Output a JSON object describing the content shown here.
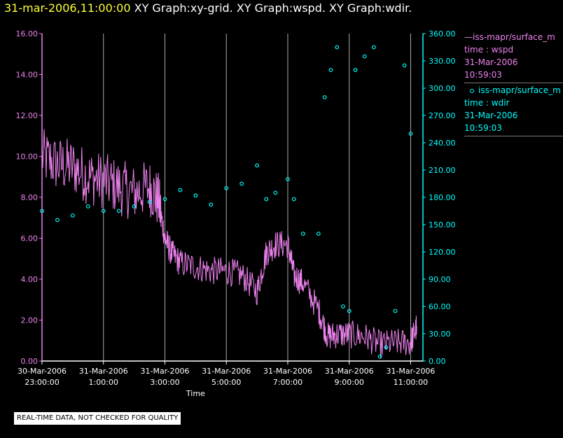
{
  "title": {
    "timestamp": "31-mar-2006,11:00:00",
    "graphs": "XY Graph:xy-grid.  XY Graph:wspd.  XY Graph:wdir."
  },
  "legend": [
    {
      "prefix": "—",
      "series": "iss-mapr/surface_m",
      "label": "time : wspd",
      "date": "31-Mar-2006",
      "time": "10:59:03"
    },
    {
      "prefix": "o",
      "series": "iss-mapr/surface_m",
      "label": "time : wdir",
      "date": "31-Mar-2006",
      "time": "10:59:03"
    }
  ],
  "disclaimer": "REAL-TIME DATA, NOT CHECKED FOR QUALITY",
  "colors": {
    "background": "#000000",
    "wspd": "#ee82ee",
    "wdir": "#00ffff",
    "grid": "#aaaaaa",
    "title_time": "#ffff33"
  },
  "chart_data": {
    "type": "line",
    "xlabel": "Time",
    "xlim_hours": [
      -1.0,
      11.4
    ],
    "x_ticks": [
      {
        "date": "30-Mar-2006",
        "time": "23:00:00"
      },
      {
        "date": "31-Mar-2006",
        "time": "1:00:00"
      },
      {
        "date": "31-Mar-2006",
        "time": "3:00:00"
      },
      {
        "date": "31-Mar-2006",
        "time": "5:00:00"
      },
      {
        "date": "31-Mar-2006",
        "time": "7:00:00"
      },
      {
        "date": "31-Mar-2006",
        "time": "9:00:00"
      },
      {
        "date": "31-Mar-2006",
        "time": "11:00:00"
      }
    ],
    "left_axis": {
      "ylim": [
        0,
        16
      ],
      "ticks": [
        "0.00",
        "2.00",
        "4.00",
        "6.00",
        "8.00",
        "10.00",
        "12.00",
        "14.00",
        "16.00"
      ]
    },
    "right_axis": {
      "ylim": [
        0,
        360
      ],
      "ticks": [
        "0.00",
        "30.00",
        "60.00",
        "90.00",
        "120.00",
        "150.00",
        "180.00",
        "210.00",
        "240.00",
        "270.00",
        "300.00",
        "330.00",
        "360.00"
      ]
    },
    "grid": "vertical lines at each time tick",
    "series": [
      {
        "key": "wspd",
        "style": "line",
        "axis": "left",
        "x": [
          -1.0,
          -0.5,
          0.0,
          0.5,
          1.0,
          1.5,
          2.0,
          2.5,
          2.8,
          3.0,
          3.2,
          3.5,
          4.0,
          4.5,
          5.0,
          5.5,
          6.0,
          6.3,
          6.6,
          7.0,
          7.2,
          7.5,
          8.0,
          8.3,
          8.6,
          9.0,
          9.5,
          10.0,
          10.5,
          11.0,
          11.2
        ],
        "y": [
          10.0,
          9.6,
          9.5,
          9.0,
          8.8,
          8.5,
          8.2,
          8.5,
          7.8,
          6.0,
          5.3,
          4.8,
          4.6,
          4.4,
          4.4,
          4.2,
          3.4,
          5.3,
          5.7,
          5.7,
          4.2,
          3.8,
          2.5,
          1.2,
          1.3,
          1.3,
          1.2,
          0.8,
          0.9,
          0.9,
          1.7
        ]
      },
      {
        "key": "wdir",
        "style": "markers",
        "axis": "right",
        "x": [
          -1.0,
          -0.5,
          0.0,
          0.5,
          1.0,
          1.5,
          2.0,
          2.5,
          3.0,
          3.5,
          4.0,
          4.5,
          5.0,
          5.5,
          6.0,
          6.3,
          6.6,
          7.0,
          7.2,
          7.5,
          8.0,
          8.2,
          8.4,
          8.6,
          8.8,
          9.0,
          9.2,
          9.5,
          9.8,
          10.0,
          10.2,
          10.5,
          10.8,
          11.0
        ],
        "y": [
          165,
          155,
          160,
          170,
          165,
          165,
          170,
          175,
          178,
          188,
          182,
          172,
          190,
          195,
          215,
          178,
          185,
          200,
          178,
          140,
          140,
          290,
          320,
          345,
          60,
          55,
          320,
          335,
          345,
          5,
          15,
          55,
          325,
          250
        ]
      }
    ]
  }
}
